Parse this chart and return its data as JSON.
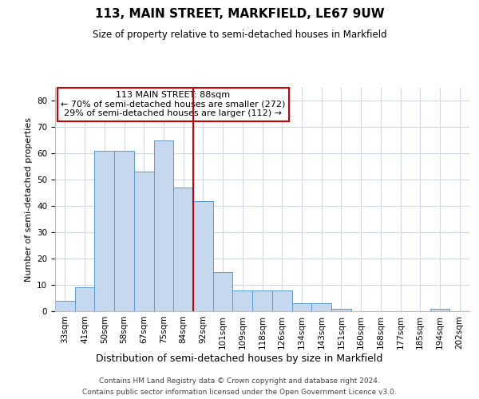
{
  "title": "113, MAIN STREET, MARKFIELD, LE67 9UW",
  "subtitle": "Size of property relative to semi-detached houses in Markfield",
  "xlabel": "Distribution of semi-detached houses by size in Markfield",
  "ylabel": "Number of semi-detached properties",
  "categories": [
    "33sqm",
    "41sqm",
    "50sqm",
    "58sqm",
    "67sqm",
    "75sqm",
    "84sqm",
    "92sqm",
    "101sqm",
    "109sqm",
    "118sqm",
    "126sqm",
    "134sqm",
    "143sqm",
    "151sqm",
    "160sqm",
    "168sqm",
    "177sqm",
    "185sqm",
    "194sqm",
    "202sqm"
  ],
  "values": [
    4,
    9,
    61,
    61,
    53,
    65,
    47,
    42,
    15,
    8,
    8,
    8,
    3,
    3,
    1,
    0,
    0,
    0,
    0,
    1,
    0
  ],
  "bar_color": "#c5d8ed",
  "bar_edge_color": "#5b9bd5",
  "annotation_title": "113 MAIN STREET: 88sqm",
  "annotation_line1": "← 70% of semi-detached houses are smaller (272)",
  "annotation_line2": "29% of semi-detached houses are larger (112) →",
  "vline_color": "#cc0000",
  "vline_x_index": 7.5,
  "annotation_box_edge_color": "#cc0000",
  "ylim_max": 85,
  "yticks": [
    0,
    10,
    20,
    30,
    40,
    50,
    60,
    70,
    80
  ],
  "footer1": "Contains HM Land Registry data © Crown copyright and database right 2024.",
  "footer2": "Contains public sector information licensed under the Open Government Licence v3.0.",
  "background_color": "#ffffff",
  "grid_color": "#d0d8e8",
  "title_fontsize": 11,
  "subtitle_fontsize": 8.5,
  "ylabel_fontsize": 8,
  "xlabel_fontsize": 9,
  "tick_fontsize": 7.5,
  "ann_fontsize": 8
}
